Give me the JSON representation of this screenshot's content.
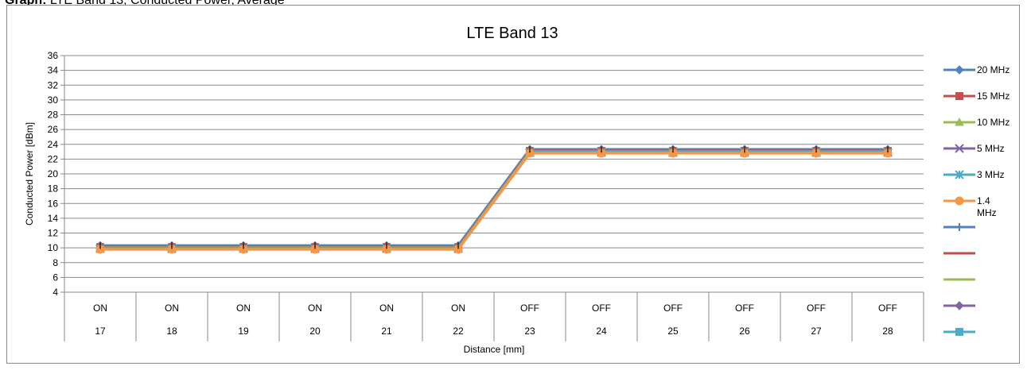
{
  "header_fragment": {
    "bold": "Graph:",
    "rest": "LTE Band 13, Conducted Power, Average"
  },
  "chart_data": {
    "type": "line",
    "title": "LTE Band 13",
    "xlabel": "Distance [mm]",
    "ylabel": "Conducted Power [dBm]",
    "ylim": [
      4,
      36
    ],
    "yticks": [
      4,
      6,
      8,
      10,
      12,
      14,
      16,
      18,
      20,
      22,
      24,
      26,
      28,
      30,
      32,
      34,
      36
    ],
    "grid": true,
    "legend_position": "right",
    "x": [
      17,
      18,
      19,
      20,
      21,
      22,
      23,
      24,
      25,
      26,
      27,
      28
    ],
    "x_state": [
      "ON",
      "ON",
      "ON",
      "ON",
      "ON",
      "ON",
      "OFF",
      "OFF",
      "OFF",
      "OFF",
      "OFF",
      "OFF"
    ],
    "series": [
      {
        "name": "20 MHz",
        "color": "#4F81BD",
        "marker": "diamond",
        "values": [
          10.3,
          10.3,
          10.3,
          10.3,
          10.3,
          10.3,
          23.3,
          23.3,
          23.3,
          23.3,
          23.3,
          23.3
        ]
      },
      {
        "name": "15 MHz",
        "color": "#C0504D",
        "marker": "square",
        "values": [
          10.1,
          10.1,
          10.1,
          10.1,
          10.1,
          10.1,
          23.1,
          23.1,
          23.1,
          23.1,
          23.1,
          23.1
        ]
      },
      {
        "name": "10 MHz",
        "color": "#9BBB59",
        "marker": "triangle",
        "values": [
          10.0,
          10.0,
          10.0,
          10.0,
          10.0,
          10.0,
          23.0,
          23.0,
          23.0,
          23.0,
          23.0,
          23.0
        ]
      },
      {
        "name": "5 MHz",
        "color": "#8064A2",
        "marker": "x",
        "values": [
          9.9,
          9.9,
          9.9,
          9.9,
          9.9,
          9.9,
          22.9,
          22.9,
          22.9,
          22.9,
          22.9,
          22.9
        ]
      },
      {
        "name": "3 MHz",
        "color": "#4BACC6",
        "marker": "asterisk",
        "values": [
          9.9,
          9.9,
          9.9,
          9.9,
          9.9,
          9.9,
          22.9,
          22.9,
          22.9,
          22.9,
          22.9,
          22.9
        ]
      },
      {
        "name": "1.4 MHz",
        "color": "#F79646",
        "marker": "circle",
        "values": [
          9.8,
          9.8,
          9.8,
          9.8,
          9.8,
          9.8,
          22.8,
          22.8,
          22.8,
          22.8,
          22.8,
          22.8
        ]
      }
    ],
    "extra_legend_entries": [
      {
        "color": "#4F81BD",
        "marker": "plus"
      },
      {
        "color": "#C0504D",
        "marker": "dash"
      },
      {
        "color": "#9BBB59",
        "marker": "none"
      },
      {
        "color": "#8064A2",
        "marker": "diamond"
      },
      {
        "color": "#4BACC6",
        "marker": "square"
      }
    ]
  }
}
